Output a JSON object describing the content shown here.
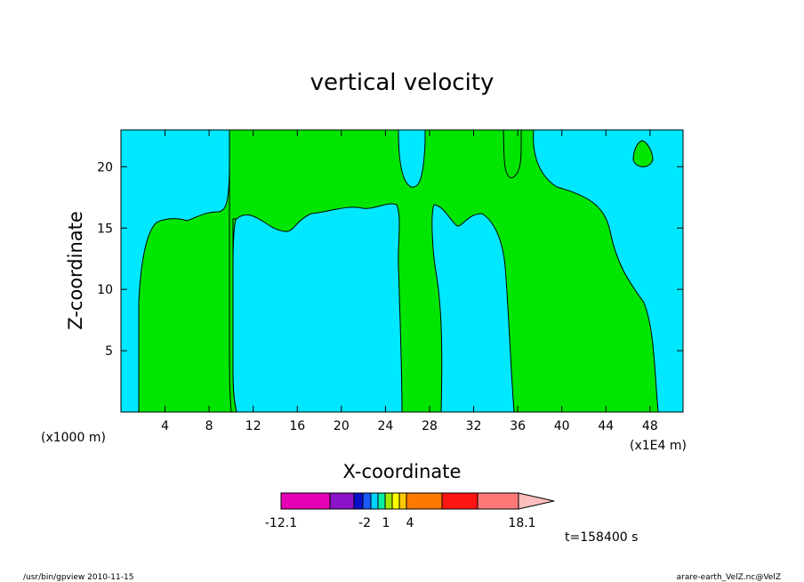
{
  "chart_data": {
    "type": "contour",
    "title": "vertical velocity",
    "xlabel": "X-coordinate",
    "ylabel": "Z-coordinate",
    "x_scale_label": "(x1000 m)",
    "x_unit_label": "(x1E4 m)",
    "xlim": [
      0,
      51
    ],
    "ylim": [
      0,
      23
    ],
    "x_ticks": [
      4,
      8,
      12,
      16,
      20,
      24,
      28,
      32,
      36,
      40,
      44,
      48
    ],
    "y_ticks": [
      5,
      10,
      15,
      20
    ],
    "colors": {
      "background_field": "#00e8ff",
      "positive_region": "#00e600"
    },
    "regions": [
      {
        "color": "positive_region",
        "x_range": [
          1.5,
          10.5
        ],
        "z_top_range": [
          15.5,
          23.0
        ]
      },
      {
        "color": "positive_region",
        "x_range": [
          10.0,
          25.5
        ],
        "z_top_range": [
          23.0,
          23.0
        ],
        "z_bottom_range": [
          14.8,
          17.0
        ]
      },
      {
        "color": "positive_region",
        "x_range": [
          25.5,
          29.5
        ],
        "z_top_range": [
          23.0,
          23.0
        ]
      },
      {
        "color": "positive_region",
        "x_range": [
          29.5,
          49.0
        ],
        "z_top_range": [
          17.0,
          23.0
        ]
      }
    ],
    "colorbar": {
      "tick_labels": [
        "-12.1",
        "-2",
        "1",
        "4",
        "18.1"
      ],
      "colors": [
        "#e600b4",
        "#8a14c8",
        "#0a10c8",
        "#1a5aff",
        "#00d2ff",
        "#00f0a0",
        "#a0e600",
        "#ffff00",
        "#ffc800",
        "#ff7800",
        "#ff1414",
        "#ff7878",
        "#ffbebe"
      ]
    }
  },
  "annotations": {
    "time": "t=158400 s",
    "footer_left": "/usr/bin/gpview  2010-11-15",
    "footer_right": "arare-earth_VelZ.nc@VelZ"
  }
}
